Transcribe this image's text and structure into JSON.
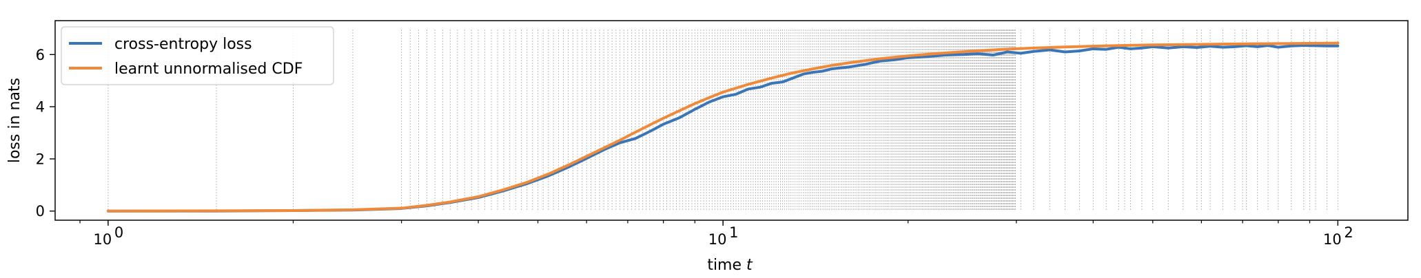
{
  "chart_data": {
    "type": "line",
    "title": "",
    "xlabel": "time",
    "xlabel_italic": "t",
    "ylabel": "loss in nats",
    "xscale": "log",
    "xlim": [
      0.82,
      130
    ],
    "ylim": [
      -0.35,
      7.3
    ],
    "grid": false,
    "legend_position": "top-left",
    "x_ticks": [
      {
        "value": 1,
        "base": "10",
        "exp": "0"
      },
      {
        "value": 10,
        "base": "10",
        "exp": "1"
      },
      {
        "value": 100,
        "base": "10",
        "exp": "2"
      }
    ],
    "y_ticks": [
      {
        "value": 0,
        "label": "0"
      },
      {
        "value": 2,
        "label": "2"
      },
      {
        "value": 4,
        "label": "4"
      },
      {
        "value": 6,
        "label": "6"
      }
    ],
    "vertical_lines_note": "dotted markers at sampled times",
    "series": [
      {
        "name": "cross-entropy loss",
        "color": "#3a75b7",
        "x": [
          1.0,
          1.5,
          2.0,
          2.5,
          3.0,
          3.3,
          3.6,
          4.0,
          4.4,
          4.8,
          5.2,
          5.6,
          6.0,
          6.4,
          6.8,
          7.2,
          7.6,
          8.0,
          8.5,
          9.0,
          9.5,
          10.0,
          10.5,
          11.0,
          11.5,
          12.0,
          12.5,
          13.0,
          13.5,
          14.0,
          14.5,
          15.0,
          16.0,
          17.0,
          18.0,
          19.0,
          20.0,
          21.5,
          23.0,
          24.5,
          26.0,
          27.5,
          29.0,
          30.5,
          32.0,
          34.0,
          36.0,
          38.0,
          40.0,
          42.0,
          44.0,
          46.0,
          48.0,
          50.0,
          53.0,
          56.0,
          59.0,
          62.0,
          65.0,
          68.0,
          71.0,
          74.0,
          77.0,
          80.0,
          84.0,
          88.0,
          92.0,
          96.0,
          100.0
        ],
        "y": [
          0.0,
          0.0,
          0.02,
          0.04,
          0.1,
          0.2,
          0.33,
          0.52,
          0.78,
          1.05,
          1.35,
          1.68,
          2.02,
          2.35,
          2.62,
          2.78,
          3.05,
          3.33,
          3.58,
          3.9,
          4.18,
          4.38,
          4.48,
          4.68,
          4.75,
          4.9,
          4.95,
          5.1,
          5.25,
          5.32,
          5.36,
          5.45,
          5.52,
          5.62,
          5.75,
          5.8,
          5.88,
          5.92,
          5.98,
          6.0,
          6.03,
          5.98,
          6.1,
          6.05,
          6.12,
          6.18,
          6.1,
          6.14,
          6.22,
          6.2,
          6.28,
          6.22,
          6.25,
          6.3,
          6.25,
          6.3,
          6.27,
          6.32,
          6.28,
          6.3,
          6.34,
          6.3,
          6.35,
          6.28,
          6.33,
          6.35,
          6.34,
          6.33,
          6.33
        ]
      },
      {
        "name": "learnt unnormalised CDF",
        "color": "#ef8a3a",
        "x": [
          1.0,
          1.5,
          2.0,
          2.5,
          3.0,
          3.3,
          3.6,
          4.0,
          4.4,
          4.8,
          5.2,
          5.6,
          6.0,
          6.4,
          6.8,
          7.2,
          7.6,
          8.0,
          8.5,
          9.0,
          9.5,
          10.0,
          11.0,
          12.0,
          13.0,
          14.0,
          15.0,
          16.0,
          18.0,
          20.0,
          22.0,
          25.0,
          28.0,
          32.0,
          36.0,
          40.0,
          45.0,
          50.0,
          60.0,
          70.0,
          80.0,
          90.0,
          100.0
        ],
        "y": [
          0.0,
          0.01,
          0.02,
          0.05,
          0.11,
          0.22,
          0.35,
          0.55,
          0.82,
          1.1,
          1.42,
          1.76,
          2.1,
          2.42,
          2.72,
          3.02,
          3.3,
          3.56,
          3.85,
          4.12,
          4.35,
          4.56,
          4.86,
          5.1,
          5.3,
          5.45,
          5.58,
          5.68,
          5.84,
          5.95,
          6.03,
          6.12,
          6.19,
          6.25,
          6.29,
          6.32,
          6.35,
          6.37,
          6.39,
          6.41,
          6.42,
          6.43,
          6.44
        ]
      }
    ]
  }
}
